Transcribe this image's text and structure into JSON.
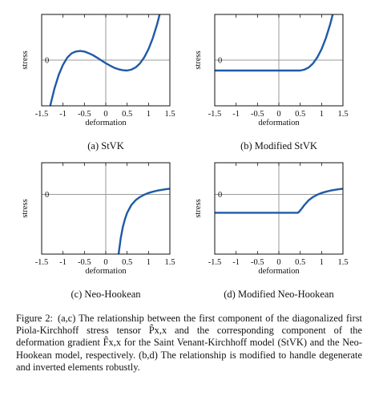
{
  "chart_data": [
    {
      "type": "line",
      "id": "a",
      "subcaption": "(a) StVK",
      "xlabel": "deformation",
      "ylabel": "stress",
      "xlim": [
        -1.5,
        1.5
      ],
      "x_ticks": [
        "-1.5",
        "-1",
        "-0.5",
        "0",
        "0.5",
        "1",
        "1.5"
      ],
      "y_ticks": [
        "0"
      ],
      "grid": "axes lines through origin",
      "series": [
        {
          "color": "#1f5aa6",
          "points": [
            [
              -1.3,
              -2.5
            ],
            [
              -1.2,
              -1.55
            ],
            [
              -1.1,
              -0.8
            ],
            [
              -1.0,
              -0.25
            ],
            [
              -0.9,
              0.14
            ],
            [
              -0.8,
              0.37
            ],
            [
              -0.7,
              0.47
            ],
            [
              -0.6,
              0.5
            ],
            [
              -0.5,
              0.47
            ],
            [
              -0.4,
              0.38
            ],
            [
              -0.3,
              0.27
            ],
            [
              -0.2,
              0.13
            ],
            [
              -0.1,
              -0.02
            ],
            [
              0.0,
              -0.17
            ],
            [
              0.1,
              -0.3
            ],
            [
              0.2,
              -0.42
            ],
            [
              0.3,
              -0.5
            ],
            [
              0.4,
              -0.55
            ],
            [
              0.5,
              -0.57
            ],
            [
              0.6,
              -0.52
            ],
            [
              0.7,
              -0.4
            ],
            [
              0.8,
              -0.18
            ],
            [
              0.9,
              0.15
            ],
            [
              1.0,
              0.6
            ],
            [
              1.1,
              1.2
            ],
            [
              1.2,
              1.95
            ],
            [
              1.3,
              2.85
            ],
            [
              1.4,
              3.9
            ]
          ]
        }
      ]
    },
    {
      "type": "line",
      "id": "b",
      "subcaption": "(b) Modified StVK",
      "xlabel": "deformation",
      "ylabel": "stress",
      "xlim": [
        -1.5,
        1.5
      ],
      "x_ticks": [
        "-1.5",
        "-1",
        "-0.5",
        "0",
        "0.5",
        "1",
        "1.5"
      ],
      "y_ticks": [
        "0"
      ],
      "grid": "axes lines through origin",
      "series": [
        {
          "color": "#1f5aa6",
          "points": [
            [
              -1.5,
              -0.57
            ],
            [
              0.5,
              -0.57
            ],
            [
              0.6,
              -0.52
            ],
            [
              0.7,
              -0.4
            ],
            [
              0.8,
              -0.18
            ],
            [
              0.9,
              0.15
            ],
            [
              1.0,
              0.6
            ],
            [
              1.1,
              1.2
            ],
            [
              1.2,
              1.95
            ],
            [
              1.3,
              2.85
            ],
            [
              1.4,
              3.9
            ]
          ]
        }
      ]
    },
    {
      "type": "line",
      "id": "c",
      "subcaption": "(c) Neo-Hookean",
      "xlabel": "deformation",
      "ylabel": "stress",
      "xlim": [
        -1.5,
        1.5
      ],
      "x_ticks": [
        "-1.5",
        "-1",
        "-0.5",
        "0",
        "0.5",
        "1",
        "1.5"
      ],
      "y_ticks": [
        "0"
      ],
      "grid": "axes lines through origin",
      "series": [
        {
          "color": "#1f5aa6",
          "points": [
            [
              0.3,
              -3.4
            ],
            [
              0.35,
              -2.5
            ],
            [
              0.4,
              -1.85
            ],
            [
              0.45,
              -1.4
            ],
            [
              0.5,
              -1.05
            ],
            [
              0.6,
              -0.6
            ],
            [
              0.7,
              -0.33
            ],
            [
              0.8,
              -0.15
            ],
            [
              0.9,
              -0.02
            ],
            [
              1.0,
              0.08
            ],
            [
              1.1,
              0.15
            ],
            [
              1.2,
              0.21
            ],
            [
              1.3,
              0.25
            ],
            [
              1.4,
              0.29
            ],
            [
              1.5,
              0.32
            ]
          ]
        }
      ]
    },
    {
      "type": "line",
      "id": "d",
      "subcaption": "(d) Modified Neo-Hookean",
      "xlabel": "deformation",
      "ylabel": "stress",
      "xlim": [
        -1.5,
        1.5
      ],
      "x_ticks": [
        "-1.5",
        "-1",
        "-0.5",
        "0",
        "0.5",
        "1",
        "1.5"
      ],
      "y_ticks": [
        "0"
      ],
      "grid": "axes lines through origin",
      "series": [
        {
          "color": "#1f5aa6",
          "points": [
            [
              -1.5,
              -1.05
            ],
            [
              0.45,
              -1.05
            ],
            [
              0.5,
              -0.92
            ],
            [
              0.6,
              -0.6
            ],
            [
              0.7,
              -0.33
            ],
            [
              0.8,
              -0.15
            ],
            [
              0.9,
              -0.02
            ],
            [
              1.0,
              0.08
            ],
            [
              1.1,
              0.15
            ],
            [
              1.2,
              0.21
            ],
            [
              1.3,
              0.25
            ],
            [
              1.4,
              0.29
            ],
            [
              1.5,
              0.32
            ]
          ]
        }
      ]
    }
  ],
  "caption": {
    "label": "Figure 2:",
    "text": "(a,c) The relationship between the first component of the diagonalized first Piola-Kirchhoff stress tensor P̂x,x and the corresponding component of the deformation gradient F̂x,x for the Saint Venant-Kirchhoff model (StVK) and the Neo-Hookean model, respectively. (b,d) The relationship is modified to handle degenerate and inverted elements robustly."
  }
}
